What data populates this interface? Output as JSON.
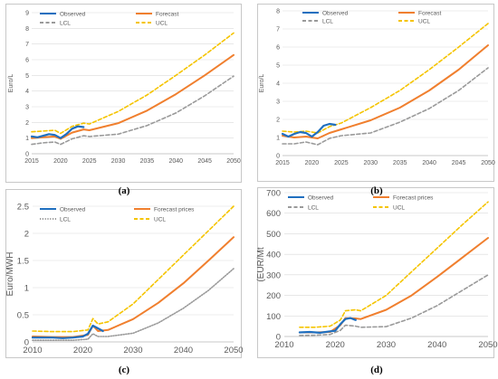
{
  "captions": [
    "(a)",
    "(b)",
    "(c)",
    "(d)"
  ],
  "colors": {
    "observed": "#1f6fbf",
    "forecast": "#f07f2e",
    "lcl": "#9a9a9a",
    "ucl": "#f5c400",
    "grid": "#d9d9d9"
  },
  "chart_data": [
    {
      "type": "line",
      "ylabel": "Euro/L",
      "ylim": [
        0,
        9
      ],
      "yticks": [
        0,
        1,
        2,
        3,
        4,
        5,
        6,
        7,
        8,
        9
      ],
      "xlim": [
        2015,
        2050
      ],
      "xticks": [
        2015,
        2020,
        2025,
        2030,
        2035,
        2040,
        2045,
        2050
      ],
      "legend": {
        "position": "top",
        "items": [
          {
            "key": "observed",
            "label": "Observed"
          },
          {
            "key": "forecast",
            "label": "Forecast"
          },
          {
            "key": "lcl",
            "label": "LCL"
          },
          {
            "key": "ucl",
            "label": "UCL"
          }
        ]
      },
      "series": [
        {
          "name": "Observed",
          "key": "observed",
          "points": [
            [
              2015,
              1.1
            ],
            [
              2016,
              1.05
            ],
            [
              2017,
              1.15
            ],
            [
              2018,
              1.25
            ],
            [
              2019,
              1.2
            ],
            [
              2020,
              1.0
            ],
            [
              2021,
              1.25
            ],
            [
              2022,
              1.6
            ],
            [
              2023,
              1.75
            ],
            [
              2024,
              1.7
            ]
          ]
        },
        {
          "name": "Forecast",
          "key": "forecast",
          "points": [
            [
              2015,
              1.0
            ],
            [
              2017,
              1.05
            ],
            [
              2019,
              1.1
            ],
            [
              2020,
              0.95
            ],
            [
              2022,
              1.35
            ],
            [
              2024,
              1.55
            ],
            [
              2025,
              1.5
            ],
            [
              2030,
              1.95
            ],
            [
              2035,
              2.75
            ],
            [
              2040,
              3.8
            ],
            [
              2045,
              5.0
            ],
            [
              2050,
              6.3
            ]
          ]
        },
        {
          "name": "LCL",
          "key": "lcl",
          "points": [
            [
              2015,
              0.6
            ],
            [
              2017,
              0.7
            ],
            [
              2019,
              0.75
            ],
            [
              2020,
              0.6
            ],
            [
              2022,
              0.95
            ],
            [
              2024,
              1.15
            ],
            [
              2025,
              1.1
            ],
            [
              2030,
              1.25
            ],
            [
              2035,
              1.8
            ],
            [
              2040,
              2.6
            ],
            [
              2045,
              3.7
            ],
            [
              2050,
              4.95
            ]
          ]
        },
        {
          "name": "UCL",
          "key": "ucl",
          "points": [
            [
              2015,
              1.4
            ],
            [
              2017,
              1.45
            ],
            [
              2019,
              1.5
            ],
            [
              2020,
              1.3
            ],
            [
              2022,
              1.75
            ],
            [
              2024,
              1.95
            ],
            [
              2025,
              1.9
            ],
            [
              2030,
              2.7
            ],
            [
              2035,
              3.75
            ],
            [
              2040,
              5.0
            ],
            [
              2045,
              6.3
            ],
            [
              2050,
              7.7
            ]
          ]
        }
      ]
    },
    {
      "type": "line",
      "ylabel": "Euro/L",
      "ylim": [
        0,
        8
      ],
      "yticks": [
        0,
        1,
        2,
        3,
        4,
        5,
        6,
        7,
        8
      ],
      "xlim": [
        2015,
        2050
      ],
      "xticks": [
        2015,
        2020,
        2025,
        2030,
        2035,
        2040,
        2045,
        2050
      ],
      "legend": {
        "position": "top",
        "items": [
          {
            "key": "observed",
            "label": "Observed"
          },
          {
            "key": "forecast",
            "label": "Forecast"
          },
          {
            "key": "lcl",
            "label": "LCL"
          },
          {
            "key": "ucl",
            "label": "UCL"
          }
        ]
      },
      "series": [
        {
          "name": "Observed",
          "key": "observed",
          "points": [
            [
              2015,
              1.2
            ],
            [
              2016,
              1.05
            ],
            [
              2017,
              1.2
            ],
            [
              2018,
              1.3
            ],
            [
              2019,
              1.25
            ],
            [
              2020,
              1.05
            ],
            [
              2021,
              1.3
            ],
            [
              2022,
              1.65
            ],
            [
              2023,
              1.75
            ],
            [
              2024,
              1.7
            ]
          ]
        },
        {
          "name": "Forecast",
          "key": "forecast",
          "points": [
            [
              2015,
              1.1
            ],
            [
              2017,
              1.0
            ],
            [
              2019,
              1.05
            ],
            [
              2021,
              0.95
            ],
            [
              2023,
              1.25
            ],
            [
              2025,
              1.45
            ],
            [
              2030,
              1.95
            ],
            [
              2035,
              2.65
            ],
            [
              2040,
              3.6
            ],
            [
              2045,
              4.75
            ],
            [
              2050,
              6.1
            ]
          ]
        },
        {
          "name": "LCL",
          "key": "lcl",
          "points": [
            [
              2015,
              0.65
            ],
            [
              2017,
              0.65
            ],
            [
              2019,
              0.75
            ],
            [
              2021,
              0.6
            ],
            [
              2023,
              0.95
            ],
            [
              2025,
              1.1
            ],
            [
              2030,
              1.25
            ],
            [
              2035,
              1.85
            ],
            [
              2040,
              2.6
            ],
            [
              2045,
              3.6
            ],
            [
              2050,
              4.85
            ]
          ]
        },
        {
          "name": "UCL",
          "key": "ucl",
          "points": [
            [
              2015,
              1.35
            ],
            [
              2017,
              1.3
            ],
            [
              2019,
              1.35
            ],
            [
              2021,
              1.25
            ],
            [
              2023,
              1.6
            ],
            [
              2025,
              1.8
            ],
            [
              2030,
              2.65
            ],
            [
              2035,
              3.6
            ],
            [
              2040,
              4.75
            ],
            [
              2045,
              6.0
            ],
            [
              2050,
              7.3
            ]
          ]
        }
      ]
    },
    {
      "type": "line",
      "ylabel": "Euro/MWH",
      "ylim": [
        0,
        2.5
      ],
      "yticks": [
        0,
        0.5,
        1,
        1.5,
        2,
        2.5
      ],
      "xlim": [
        2010,
        2050
      ],
      "xticks": [
        2010,
        2020,
        2030,
        2040,
        2050
      ],
      "legend": {
        "position": "top",
        "items": [
          {
            "key": "observed",
            "label": "Observed"
          },
          {
            "key": "forecast",
            "label": "Forecast prices"
          },
          {
            "key": "lcl",
            "label": "LCL"
          },
          {
            "key": "ucl",
            "label": "UCL"
          }
        ]
      },
      "series": [
        {
          "name": "Observed",
          "key": "observed",
          "points": [
            [
              2010,
              0.08
            ],
            [
              2012,
              0.08
            ],
            [
              2014,
              0.08
            ],
            [
              2016,
              0.07
            ],
            [
              2018,
              0.08
            ],
            [
              2020,
              0.1
            ],
            [
              2021,
              0.15
            ],
            [
              2022,
              0.3
            ],
            [
              2023,
              0.25
            ],
            [
              2024,
              0.2
            ]
          ]
        },
        {
          "name": "Forecast prices",
          "key": "forecast",
          "points": [
            [
              2010,
              0.1
            ],
            [
              2014,
              0.09
            ],
            [
              2018,
              0.09
            ],
            [
              2021,
              0.13
            ],
            [
              2022,
              0.3
            ],
            [
              2023,
              0.2
            ],
            [
              2025,
              0.22
            ],
            [
              2030,
              0.42
            ],
            [
              2035,
              0.72
            ],
            [
              2040,
              1.08
            ],
            [
              2045,
              1.5
            ],
            [
              2050,
              1.93
            ]
          ]
        },
        {
          "name": "LCL",
          "key": "lcl",
          "points": [
            [
              2010,
              0.03
            ],
            [
              2014,
              0.03
            ],
            [
              2018,
              0.03
            ],
            [
              2021,
              0.05
            ],
            [
              2022,
              0.15
            ],
            [
              2023,
              0.1
            ],
            [
              2025,
              0.1
            ],
            [
              2030,
              0.16
            ],
            [
              2035,
              0.35
            ],
            [
              2040,
              0.62
            ],
            [
              2045,
              0.95
            ],
            [
              2050,
              1.35
            ]
          ]
        },
        {
          "name": "UCL",
          "key": "ucl",
          "points": [
            [
              2010,
              0.2
            ],
            [
              2014,
              0.19
            ],
            [
              2018,
              0.19
            ],
            [
              2021,
              0.22
            ],
            [
              2022,
              0.43
            ],
            [
              2023,
              0.33
            ],
            [
              2025,
              0.37
            ],
            [
              2030,
              0.7
            ],
            [
              2035,
              1.15
            ],
            [
              2040,
              1.6
            ],
            [
              2045,
              2.05
            ],
            [
              2050,
              2.5
            ]
          ]
        }
      ]
    },
    {
      "type": "line",
      "ylabel": "(EUR/Mt",
      "ylim": [
        0,
        700
      ],
      "yticks": [
        0,
        100,
        200,
        300,
        400,
        500,
        600,
        700
      ],
      "xlim": [
        2010,
        2050
      ],
      "xticks": [
        2010,
        2020,
        2030,
        2040,
        2050
      ],
      "legend": {
        "position": "top",
        "items": [
          {
            "key": "observed",
            "label": "Observed"
          },
          {
            "key": "forecast",
            "label": "Forecast prices"
          },
          {
            "key": "lcl",
            "label": "LCL"
          },
          {
            "key": "ucl",
            "label": "UCL"
          }
        ]
      },
      "series": [
        {
          "name": "Observed",
          "key": "observed",
          "points": [
            [
              2013,
              20
            ],
            [
              2015,
              22
            ],
            [
              2017,
              18
            ],
            [
              2019,
              25
            ],
            [
              2020,
              28
            ],
            [
              2021,
              60
            ],
            [
              2022,
              85
            ],
            [
              2023,
              90
            ],
            [
              2024,
              80
            ]
          ]
        },
        {
          "name": "Forecast prices",
          "key": "forecast",
          "points": [
            [
              2013,
              20
            ],
            [
              2016,
              20
            ],
            [
              2019,
              22
            ],
            [
              2021,
              55
            ],
            [
              2022,
              90
            ],
            [
              2024,
              88
            ],
            [
              2025,
              85
            ],
            [
              2030,
              130
            ],
            [
              2035,
              200
            ],
            [
              2040,
              290
            ],
            [
              2045,
              385
            ],
            [
              2050,
              480
            ]
          ]
        },
        {
          "name": "LCL",
          "key": "lcl",
          "points": [
            [
              2013,
              5
            ],
            [
              2016,
              6
            ],
            [
              2019,
              10
            ],
            [
              2021,
              30
            ],
            [
              2022,
              55
            ],
            [
              2024,
              50
            ],
            [
              2025,
              45
            ],
            [
              2030,
              48
            ],
            [
              2035,
              90
            ],
            [
              2040,
              150
            ],
            [
              2045,
              225
            ],
            [
              2050,
              300
            ]
          ]
        },
        {
          "name": "UCL",
          "key": "ucl",
          "points": [
            [
              2013,
              45
            ],
            [
              2016,
              45
            ],
            [
              2019,
              50
            ],
            [
              2021,
              80
            ],
            [
              2022,
              125
            ],
            [
              2024,
              130
            ],
            [
              2025,
              125
            ],
            [
              2030,
              200
            ],
            [
              2035,
              315
            ],
            [
              2040,
              430
            ],
            [
              2045,
              545
            ],
            [
              2050,
              655
            ]
          ]
        }
      ]
    }
  ]
}
